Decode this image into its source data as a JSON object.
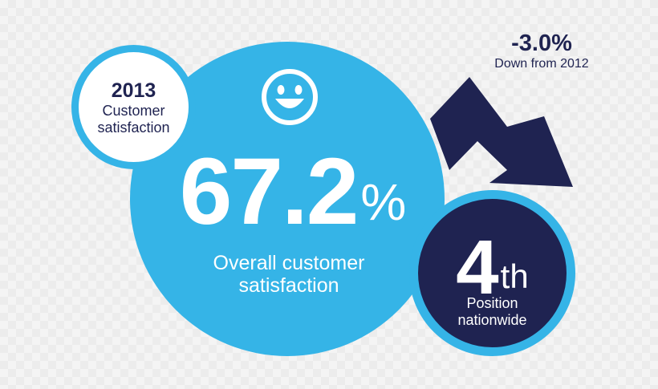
{
  "year_badge": {
    "year": "2013",
    "label_line1": "Customer",
    "label_line2": "satisfaction"
  },
  "main_stat": {
    "value": "67.2",
    "unit": "%",
    "label_line1": "Overall customer",
    "label_line2": "satisfaction"
  },
  "change": {
    "value": "-3.0%",
    "label": "Down from 2012"
  },
  "rank": {
    "value": "4",
    "suffix": "th",
    "label_line1": "Position",
    "label_line2": "nationwide"
  },
  "icons": {
    "smiley": "smiley-face-icon",
    "arrow": "down-trend-arrow-icon"
  },
  "colors": {
    "light_blue": "#35b4e7",
    "navy": "#1f2351",
    "white": "#ffffff"
  }
}
